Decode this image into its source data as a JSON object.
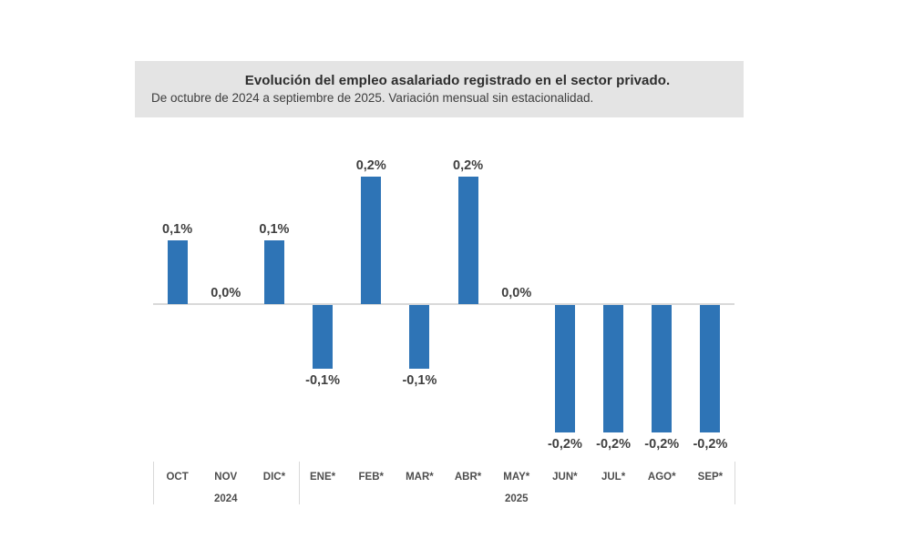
{
  "header": {
    "title": "Evolución del empleo asalariado registrado en el sector privado.",
    "subtitle": "De octubre de 2024 a septiembre de 2025. Variación mensual sin estacionalidad."
  },
  "chart_data": {
    "type": "bar",
    "title": "Evolución del empleo asalariado registrado en el sector privado.",
    "subtitle": "De octubre de 2024 a septiembre de 2025. Variación mensual sin estacionalidad.",
    "categories": [
      "OCT",
      "NOV",
      "DIC*",
      "ENE*",
      "FEB*",
      "MAR*",
      "ABR*",
      "MAY*",
      "JUN*",
      "JUL*",
      "AGO*",
      "SEP*"
    ],
    "values": [
      0.1,
      0.0,
      0.1,
      -0.1,
      0.2,
      -0.1,
      0.2,
      0.0,
      -0.2,
      -0.2,
      -0.2,
      -0.2
    ],
    "value_labels": [
      "0,1%",
      "0,0%",
      "0,1%",
      "-0,1%",
      "0,2%",
      "-0,1%",
      "0,2%",
      "0,0%",
      "-0,2%",
      "-0,2%",
      "-0,2%",
      "-0,2%"
    ],
    "year_labels": [
      {
        "text": "2024",
        "column_index": 1
      },
      {
        "text": "2025",
        "column_index": 7
      }
    ],
    "separators_at_columns": [
      0,
      3,
      12
    ],
    "xlabel": "",
    "ylabel": "",
    "unit": "%",
    "ylim": [
      -0.25,
      0.25
    ],
    "grid": false,
    "legend": false,
    "bar_color": "#2E74B6",
    "axis_color": "#d9d9d9",
    "label_color": "#3f3f3f",
    "header_background": "#e4e4e4"
  }
}
